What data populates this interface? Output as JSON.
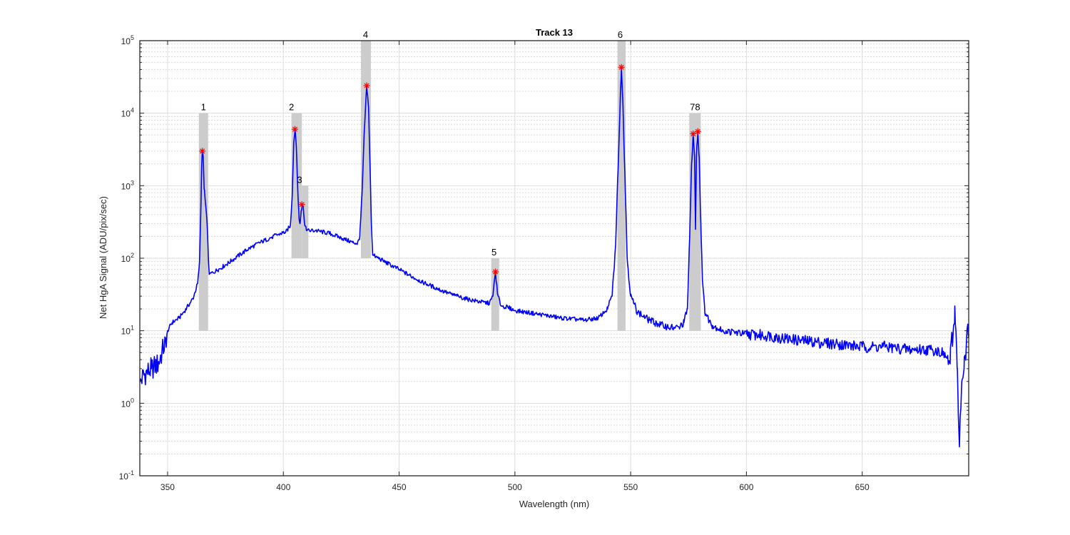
{
  "chart_data": {
    "type": "line",
    "title": "Track 13",
    "xlabel": "Wavelength (nm)",
    "ylabel": "Net HgA Signal (ADU/pix/sec)",
    "xlim": [
      338,
      696
    ],
    "ylim": [
      0.1,
      100000
    ],
    "yscale": "log",
    "grid": true,
    "x_ticks": [
      "350",
      "400",
      "450",
      "500",
      "550",
      "600",
      "650"
    ],
    "y_ticks": [
      {
        "base": "10",
        "exp": "-1"
      },
      {
        "base": "10",
        "exp": "0"
      },
      {
        "base": "10",
        "exp": "1"
      },
      {
        "base": "10",
        "exp": "2"
      },
      {
        "base": "10",
        "exp": "3"
      },
      {
        "base": "10",
        "exp": "4"
      },
      {
        "base": "10",
        "exp": "5"
      }
    ],
    "colors": {
      "line": "#0000ff",
      "marker": "#ff0000",
      "band": "#cccccc"
    },
    "peak_markers": [
      {
        "label": "1",
        "x": 365.0,
        "y": 3000
      },
      {
        "label": "2",
        "x": 405.0,
        "y": 6000
      },
      {
        "label": "3",
        "x": 408.0,
        "y": 550
      },
      {
        "label": "4",
        "x": 436.0,
        "y": 24000
      },
      {
        "label": "5",
        "x": 491.6,
        "y": 65
      },
      {
        "label": "6",
        "x": 546.0,
        "y": 43000
      },
      {
        "label": "7",
        "x": 577.0,
        "y": 5200
      },
      {
        "label": "8",
        "x": 579.0,
        "y": 5600
      }
    ],
    "bands": [
      {
        "label": "1",
        "x0": 363.5,
        "x1": 367.5,
        "y0": 10,
        "y1": 10000
      },
      {
        "label": "2",
        "x0": 403.5,
        "x1": 408.0,
        "y0": 100,
        "y1": 10000
      },
      {
        "label": "3",
        "x0": 408.0,
        "x1": 410.8,
        "y0": 100,
        "y1": 1000
      },
      {
        "label": "4",
        "x0": 433.5,
        "x1": 437.8,
        "y0": 100,
        "y1": 100000
      },
      {
        "label": "5",
        "x0": 489.8,
        "x1": 493.2,
        "y0": 10,
        "y1": 100
      },
      {
        "label": "6",
        "x0": 544.3,
        "x1": 547.8,
        "y0": 10,
        "y1": 100000
      },
      {
        "label": "78",
        "x0": 575.3,
        "x1": 580.3,
        "y0": 10,
        "y1": 10000
      }
    ],
    "band_labels": [
      {
        "text": "1",
        "x": 365.5,
        "y": 10000
      },
      {
        "text": "2",
        "x": 403.5,
        "y": 10000
      },
      {
        "text": "3",
        "x": 407.0,
        "y": 1000
      },
      {
        "text": "4",
        "x": 435.5,
        "y": 100000
      },
      {
        "text": "5",
        "x": 491.0,
        "y": 100
      },
      {
        "text": "6",
        "x": 545.5,
        "y": 100000
      },
      {
        "text": "78",
        "x": 577.8,
        "y": 10000
      }
    ],
    "baseline": [
      [
        338,
        2.0
      ],
      [
        340,
        2.5
      ],
      [
        343,
        3.0
      ],
      [
        346,
        3.5
      ],
      [
        349,
        7
      ],
      [
        350,
        10
      ],
      [
        352,
        13
      ],
      [
        355,
        15
      ],
      [
        358,
        20
      ],
      [
        361,
        28
      ],
      [
        363,
        45
      ],
      [
        363.8,
        90
      ],
      [
        364.3,
        400
      ],
      [
        364.7,
        1800
      ],
      [
        365,
        3000
      ],
      [
        365.4,
        2500
      ],
      [
        365.8,
        900
      ],
      [
        366.3,
        600
      ],
      [
        366.8,
        400
      ],
      [
        367.3,
        200
      ],
      [
        367.6,
        100
      ],
      [
        368,
        60
      ],
      [
        372,
        70
      ],
      [
        376,
        85
      ],
      [
        380,
        105
      ],
      [
        385,
        135
      ],
      [
        390,
        165
      ],
      [
        395,
        195
      ],
      [
        398,
        215
      ],
      [
        401,
        230
      ],
      [
        403,
        280
      ],
      [
        403.8,
        700
      ],
      [
        404.5,
        4000
      ],
      [
        405,
        6000
      ],
      [
        405.6,
        3500
      ],
      [
        406.2,
        900
      ],
      [
        406.8,
        350
      ],
      [
        407.2,
        300
      ],
      [
        407.7,
        450
      ],
      [
        408.1,
        550
      ],
      [
        408.6,
        500
      ],
      [
        409.3,
        280
      ],
      [
        410,
        240
      ],
      [
        414,
        240
      ],
      [
        420,
        220
      ],
      [
        425,
        190
      ],
      [
        430,
        165
      ],
      [
        432,
        160
      ],
      [
        433,
        200
      ],
      [
        434,
        800
      ],
      [
        435,
        6000
      ],
      [
        436,
        24000
      ],
      [
        436.8,
        12000
      ],
      [
        437.5,
        1500
      ],
      [
        438,
        300
      ],
      [
        438.6,
        110
      ],
      [
        440,
        105
      ],
      [
        445,
        85
      ],
      [
        450,
        70
      ],
      [
        455,
        57
      ],
      [
        460,
        47
      ],
      [
        465,
        40
      ],
      [
        470,
        34
      ],
      [
        475,
        30
      ],
      [
        480,
        27
      ],
      [
        485,
        25
      ],
      [
        489,
        24
      ],
      [
        490.5,
        30
      ],
      [
        491.6,
        65
      ],
      [
        492.5,
        32
      ],
      [
        494,
        22
      ],
      [
        497,
        21
      ],
      [
        500,
        19
      ],
      [
        510,
        17
      ],
      [
        520,
        15
      ],
      [
        530,
        14
      ],
      [
        536,
        15
      ],
      [
        540,
        20
      ],
      [
        542,
        30
      ],
      [
        543.5,
        150
      ],
      [
        544.5,
        1500
      ],
      [
        545.5,
        15000
      ],
      [
        546,
        43000
      ],
      [
        546.6,
        15000
      ],
      [
        547.5,
        1500
      ],
      [
        548.5,
        100
      ],
      [
        550,
        30
      ],
      [
        553,
        18
      ],
      [
        558,
        14
      ],
      [
        563,
        12
      ],
      [
        568,
        11
      ],
      [
        571,
        11
      ],
      [
        573,
        13
      ],
      [
        574.5,
        20
      ],
      [
        575.5,
        200
      ],
      [
        576.3,
        2000
      ],
      [
        577,
        5200
      ],
      [
        577.6,
        2500
      ],
      [
        578,
        250
      ],
      [
        578.4,
        2500
      ],
      [
        579,
        5600
      ],
      [
        579.6,
        2500
      ],
      [
        580.3,
        300
      ],
      [
        581,
        50
      ],
      [
        582,
        18
      ],
      [
        585,
        12
      ],
      [
        590,
        10
      ],
      [
        600,
        9
      ],
      [
        610,
        8.5
      ],
      [
        620,
        7.5
      ],
      [
        630,
        7
      ],
      [
        640,
        6.5
      ],
      [
        650,
        6
      ],
      [
        660,
        6
      ],
      [
        670,
        5.5
      ],
      [
        680,
        5.5
      ],
      [
        685,
        5.0
      ],
      [
        688,
        3.5
      ],
      [
        689.5,
        12
      ],
      [
        690,
        22
      ],
      [
        690.5,
        10
      ],
      [
        691,
        3
      ],
      [
        691.5,
        0.7
      ],
      [
        692,
        0.25
      ],
      [
        693,
        2
      ],
      [
        694,
        3
      ],
      [
        695,
        7
      ],
      [
        696,
        9
      ]
    ]
  }
}
